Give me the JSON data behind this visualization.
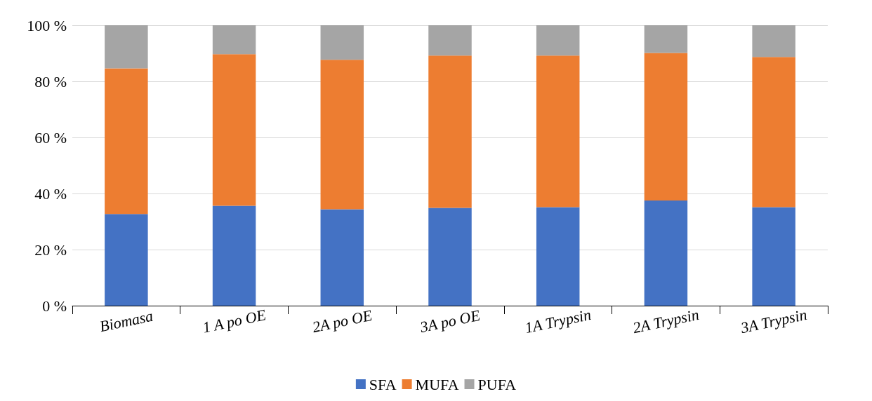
{
  "chart_data": {
    "type": "bar",
    "stacked": true,
    "categories": [
      "Biomasa",
      "1 A po OE",
      "2A po OE",
      "3A po OE",
      "1A Trypsin",
      "2A Trypsin",
      "3A Trypsin"
    ],
    "series": [
      {
        "name": "SFA",
        "color": "#4472c4",
        "values": [
          32.7,
          35.6,
          34.4,
          34.9,
          35.1,
          37.5,
          35.1
        ]
      },
      {
        "name": "MUFA",
        "color": "#ed7d31",
        "values": [
          51.9,
          54.1,
          53.3,
          54.3,
          54.1,
          52.6,
          53.6
        ]
      },
      {
        "name": "PUFA",
        "color": "#a5a5a5",
        "values": [
          15.4,
          10.3,
          12.3,
          10.8,
          10.8,
          9.9,
          11.3
        ]
      }
    ],
    "ylim": [
      0,
      100
    ],
    "yticks": [
      {
        "value": 0,
        "label": "0 %"
      },
      {
        "value": 20,
        "label": "20 %"
      },
      {
        "value": 40,
        "label": "40 %"
      },
      {
        "value": 60,
        "label": "60 %"
      },
      {
        "value": 80,
        "label": "80 %"
      },
      {
        "value": 100,
        "label": "100 %"
      }
    ],
    "grid": "y",
    "legend": "bottom"
  }
}
